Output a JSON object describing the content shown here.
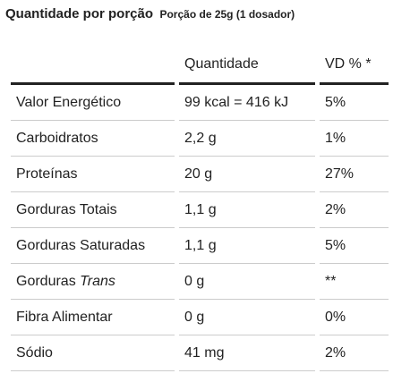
{
  "header": {
    "title": "Quantidade por porção",
    "serving": "Porção de 25g (1 dosador)"
  },
  "table": {
    "columns": [
      "",
      "Quantidade",
      "VD % *"
    ],
    "rows": [
      [
        "Valor Energético",
        "99 kcal = 416 kJ",
        "5%"
      ],
      [
        "Carboidratos",
        "2,2 g",
        "1%"
      ],
      [
        "Proteínas",
        "20 g",
        "27%"
      ],
      [
        "Gorduras Totais",
        "1,1 g",
        "2%"
      ],
      [
        "Gorduras Saturadas",
        "1,1 g",
        "5%"
      ],
      [
        {
          "text": "Gorduras",
          "emphasis": "Trans"
        },
        "0 g",
        "**"
      ],
      [
        "Fibra Alimentar",
        "0 g",
        "0%"
      ],
      [
        "Sódio",
        "41 mg",
        "2%"
      ]
    ]
  }
}
